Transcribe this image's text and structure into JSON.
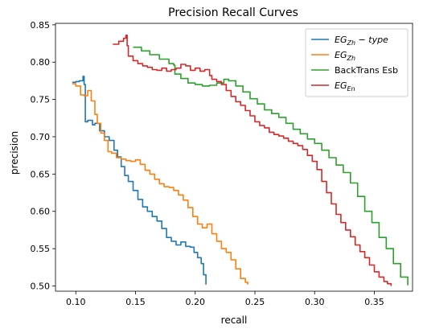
{
  "chart_data": {
    "type": "line",
    "title": "Precision Recall Curves",
    "xlabel": "recall",
    "ylabel": "precision",
    "xlim": [
      0.083,
      0.382
    ],
    "ylim": [
      0.493,
      0.852
    ],
    "xticks": [
      0.1,
      0.15,
      0.2,
      0.25,
      0.3,
      0.35
    ],
    "xtick_labels": [
      "0.10",
      "0.15",
      "0.20",
      "0.25",
      "0.30",
      "0.35"
    ],
    "yticks": [
      0.5,
      0.55,
      0.6,
      0.65,
      0.7,
      0.75,
      0.8,
      0.85
    ],
    "ytick_labels": [
      "0.50",
      "0.55",
      "0.60",
      "0.65",
      "0.70",
      "0.75",
      "0.80",
      "0.85"
    ],
    "grid": false,
    "legend_position": "top-right",
    "series": [
      {
        "name": "EG_{Zh} - type",
        "legend": {
          "base": "EG",
          "sub": "Zh",
          "suffix": " − type"
        },
        "color": "#1f77b4",
        "x": [
          0.097,
          0.1,
          0.103,
          0.106,
          0.107,
          0.108,
          0.11,
          0.114,
          0.116,
          0.12,
          0.124,
          0.128,
          0.132,
          0.135,
          0.138,
          0.141,
          0.144,
          0.148,
          0.152,
          0.156,
          0.16,
          0.164,
          0.168,
          0.172,
          0.176,
          0.18,
          0.184,
          0.188,
          0.192,
          0.196,
          0.199,
          0.202,
          0.205,
          0.207,
          0.209
        ],
        "y": [
          0.773,
          0.774,
          0.775,
          0.781,
          0.77,
          0.72,
          0.722,
          0.716,
          0.718,
          0.708,
          0.7,
          0.695,
          0.682,
          0.673,
          0.66,
          0.648,
          0.64,
          0.628,
          0.616,
          0.606,
          0.6,
          0.593,
          0.587,
          0.577,
          0.565,
          0.56,
          0.555,
          0.559,
          0.553,
          0.552,
          0.545,
          0.538,
          0.53,
          0.515,
          0.502
        ]
      },
      {
        "name": "EG_{Zh}",
        "legend": {
          "base": "EG",
          "sub": "Zh",
          "suffix": ""
        },
        "color": "#ff7f0e",
        "x": [
          0.097,
          0.1,
          0.104,
          0.107,
          0.11,
          0.113,
          0.116,
          0.118,
          0.121,
          0.124,
          0.127,
          0.13,
          0.134,
          0.138,
          0.142,
          0.146,
          0.15,
          0.154,
          0.158,
          0.162,
          0.166,
          0.17,
          0.174,
          0.178,
          0.182,
          0.186,
          0.19,
          0.194,
          0.198,
          0.202,
          0.206,
          0.21,
          0.214,
          0.218,
          0.222,
          0.226,
          0.23,
          0.234,
          0.238,
          0.242,
          0.244
        ],
        "y": [
          0.771,
          0.768,
          0.756,
          0.755,
          0.762,
          0.748,
          0.73,
          0.718,
          0.705,
          0.695,
          0.68,
          0.678,
          0.672,
          0.67,
          0.668,
          0.667,
          0.669,
          0.663,
          0.655,
          0.65,
          0.643,
          0.637,
          0.633,
          0.632,
          0.628,
          0.622,
          0.615,
          0.605,
          0.593,
          0.583,
          0.578,
          0.583,
          0.57,
          0.56,
          0.55,
          0.545,
          0.535,
          0.523,
          0.51,
          0.505,
          0.502
        ]
      },
      {
        "name": "BackTrans Esb",
        "legend": {
          "base": "BackTrans Esb",
          "sub": "",
          "suffix": ""
        },
        "color": "#2ca02c",
        "x": [
          0.148,
          0.155,
          0.162,
          0.17,
          0.178,
          0.182,
          0.183,
          0.188,
          0.194,
          0.2,
          0.206,
          0.212,
          0.218,
          0.224,
          0.228,
          0.234,
          0.24,
          0.246,
          0.252,
          0.258,
          0.264,
          0.27,
          0.276,
          0.282,
          0.288,
          0.294,
          0.3,
          0.306,
          0.312,
          0.318,
          0.324,
          0.33,
          0.336,
          0.342,
          0.348,
          0.354,
          0.36,
          0.366,
          0.372,
          0.378
        ],
        "y": [
          0.82,
          0.815,
          0.81,
          0.804,
          0.798,
          0.796,
          0.784,
          0.778,
          0.772,
          0.77,
          0.768,
          0.769,
          0.772,
          0.777,
          0.775,
          0.768,
          0.76,
          0.751,
          0.744,
          0.736,
          0.731,
          0.726,
          0.718,
          0.71,
          0.704,
          0.697,
          0.691,
          0.682,
          0.672,
          0.662,
          0.652,
          0.638,
          0.62,
          0.6,
          0.585,
          0.565,
          0.55,
          0.53,
          0.512,
          0.501
        ]
      },
      {
        "name": "EG_{En}",
        "legend": {
          "base": "EG",
          "sub": "En",
          "suffix": ""
        },
        "color": "#d62728",
        "x": [
          0.131,
          0.136,
          0.14,
          0.142,
          0.143,
          0.144,
          0.148,
          0.152,
          0.156,
          0.16,
          0.164,
          0.168,
          0.172,
          0.176,
          0.18,
          0.184,
          0.188,
          0.192,
          0.196,
          0.2,
          0.204,
          0.208,
          0.212,
          0.214,
          0.218,
          0.222,
          0.226,
          0.23,
          0.234,
          0.238,
          0.242,
          0.246,
          0.25,
          0.254,
          0.258,
          0.262,
          0.266,
          0.27,
          0.274,
          0.278,
          0.282,
          0.286,
          0.29,
          0.294,
          0.298,
          0.302,
          0.306,
          0.31,
          0.314,
          0.318,
          0.322,
          0.326,
          0.33,
          0.334,
          0.338,
          0.342,
          0.346,
          0.35,
          0.354,
          0.358,
          0.361,
          0.364
        ],
        "y": [
          0.824,
          0.828,
          0.832,
          0.836,
          0.822,
          0.808,
          0.802,
          0.798,
          0.795,
          0.793,
          0.79,
          0.789,
          0.792,
          0.788,
          0.79,
          0.792,
          0.797,
          0.795,
          0.789,
          0.792,
          0.788,
          0.79,
          0.782,
          0.777,
          0.774,
          0.77,
          0.762,
          0.754,
          0.747,
          0.742,
          0.735,
          0.728,
          0.72,
          0.715,
          0.712,
          0.706,
          0.703,
          0.701,
          0.698,
          0.694,
          0.691,
          0.688,
          0.683,
          0.675,
          0.667,
          0.656,
          0.64,
          0.625,
          0.61,
          0.596,
          0.585,
          0.575,
          0.566,
          0.555,
          0.546,
          0.538,
          0.528,
          0.519,
          0.512,
          0.506,
          0.503,
          0.5
        ]
      }
    ]
  }
}
